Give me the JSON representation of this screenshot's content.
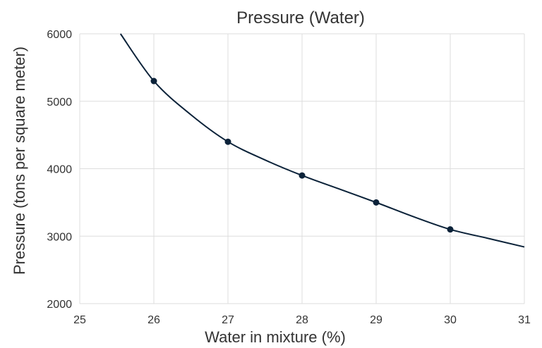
{
  "chart_data": {
    "type": "line",
    "title": "Pressure (Water)",
    "xlabel": "Water in mixture (%)",
    "ylabel": "Pressure (tons per square meter)",
    "xlim": [
      25,
      31
    ],
    "ylim": [
      2000,
      6000
    ],
    "xticks": [
      "25",
      "26",
      "27",
      "28",
      "29",
      "30",
      "31"
    ],
    "yticks": [
      "2000",
      "3000",
      "4000",
      "5000",
      "6000"
    ],
    "grid": true,
    "points": [
      {
        "x": 26,
        "y": 5300
      },
      {
        "x": 27,
        "y": 4400
      },
      {
        "x": 28,
        "y": 3900
      },
      {
        "x": 29,
        "y": 3500
      },
      {
        "x": 30,
        "y": 3100
      }
    ],
    "curve": [
      {
        "x": 25.55,
        "y": 6000
      },
      {
        "x": 26,
        "y": 5300
      },
      {
        "x": 26.5,
        "y": 4800
      },
      {
        "x": 27,
        "y": 4400
      },
      {
        "x": 27.5,
        "y": 4130
      },
      {
        "x": 28,
        "y": 3900
      },
      {
        "x": 28.5,
        "y": 3700
      },
      {
        "x": 29,
        "y": 3500
      },
      {
        "x": 29.5,
        "y": 3290
      },
      {
        "x": 30,
        "y": 3100
      },
      {
        "x": 30.5,
        "y": 2970
      },
      {
        "x": 31,
        "y": 2840
      }
    ],
    "line_color": "#0b2239",
    "grid_color": "#dddddd"
  }
}
